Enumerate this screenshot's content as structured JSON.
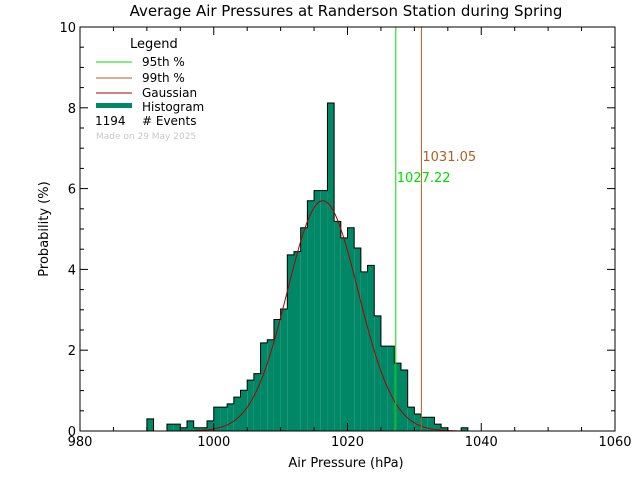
{
  "chart_data": {
    "type": "bar",
    "title": "Average Air Pressures at Randerson Station during Spring",
    "xlabel": "Air Pressure (hPa)",
    "ylabel": "Probability (%)",
    "xlim": [
      980,
      1060
    ],
    "ylim": [
      0,
      10
    ],
    "x_ticks": [
      "980",
      "1000",
      "1020",
      "1040",
      "1060"
    ],
    "y_ticks": [
      "0",
      "2",
      "4",
      "6",
      "8",
      "10"
    ],
    "bin_width": 1,
    "histogram": {
      "name": "Histogram",
      "color": "#008866",
      "bins": [
        {
          "x": 990,
          "y": 0.3
        },
        {
          "x": 991,
          "y": 0.0
        },
        {
          "x": 992,
          "y": 0.0
        },
        {
          "x": 993,
          "y": 0.17
        },
        {
          "x": 994,
          "y": 0.17
        },
        {
          "x": 995,
          "y": 0.08
        },
        {
          "x": 996,
          "y": 0.25
        },
        {
          "x": 997,
          "y": 0.08
        },
        {
          "x": 998,
          "y": 0.08
        },
        {
          "x": 999,
          "y": 0.25
        },
        {
          "x": 1000,
          "y": 0.59
        },
        {
          "x": 1001,
          "y": 0.59
        },
        {
          "x": 1002,
          "y": 0.67
        },
        {
          "x": 1003,
          "y": 0.84
        },
        {
          "x": 1004,
          "y": 1.01
        },
        {
          "x": 1005,
          "y": 1.26
        },
        {
          "x": 1006,
          "y": 1.42
        },
        {
          "x": 1007,
          "y": 2.18
        },
        {
          "x": 1008,
          "y": 2.26
        },
        {
          "x": 1009,
          "y": 2.76
        },
        {
          "x": 1010,
          "y": 3.02
        },
        {
          "x": 1011,
          "y": 4.36
        },
        {
          "x": 1012,
          "y": 4.44
        },
        {
          "x": 1013,
          "y": 5.03
        },
        {
          "x": 1014,
          "y": 5.7
        },
        {
          "x": 1015,
          "y": 5.95
        },
        {
          "x": 1016,
          "y": 5.95
        },
        {
          "x": 1017,
          "y": 8.12
        },
        {
          "x": 1018,
          "y": 5.19
        },
        {
          "x": 1019,
          "y": 4.78
        },
        {
          "x": 1020,
          "y": 5.03
        },
        {
          "x": 1021,
          "y": 4.53
        },
        {
          "x": 1022,
          "y": 3.94
        },
        {
          "x": 1023,
          "y": 4.1
        },
        {
          "x": 1024,
          "y": 2.85
        },
        {
          "x": 1025,
          "y": 2.1
        },
        {
          "x": 1026,
          "y": 2.1
        },
        {
          "x": 1027,
          "y": 1.68
        },
        {
          "x": 1028,
          "y": 1.51
        },
        {
          "x": 1029,
          "y": 0.59
        },
        {
          "x": 1030,
          "y": 0.42
        },
        {
          "x": 1031,
          "y": 0.34
        },
        {
          "x": 1032,
          "y": 0.34
        },
        {
          "x": 1033,
          "y": 0.17
        },
        {
          "x": 1034,
          "y": 0.08
        },
        {
          "x": 1035,
          "y": 0.0
        },
        {
          "x": 1036,
          "y": 0.0
        },
        {
          "x": 1037,
          "y": 0.08
        }
      ]
    },
    "gaussian": {
      "name": "Gaussian",
      "color": "#aa0000",
      "mean": 1016.3,
      "sigma": 5.3,
      "peak": 5.7
    },
    "percentiles": [
      {
        "name": "95th %",
        "value": 1027.22,
        "label": "1027.22",
        "color": "#00dd00"
      },
      {
        "name": "99th %",
        "value": 1031.05,
        "label": "1031.05",
        "color": "#b06020"
      }
    ],
    "legend": {
      "title": "Legend",
      "placement": "top-left",
      "events_count": "1194",
      "events_label": "# Events",
      "made_on": "Made on 29 May 2025"
    }
  }
}
